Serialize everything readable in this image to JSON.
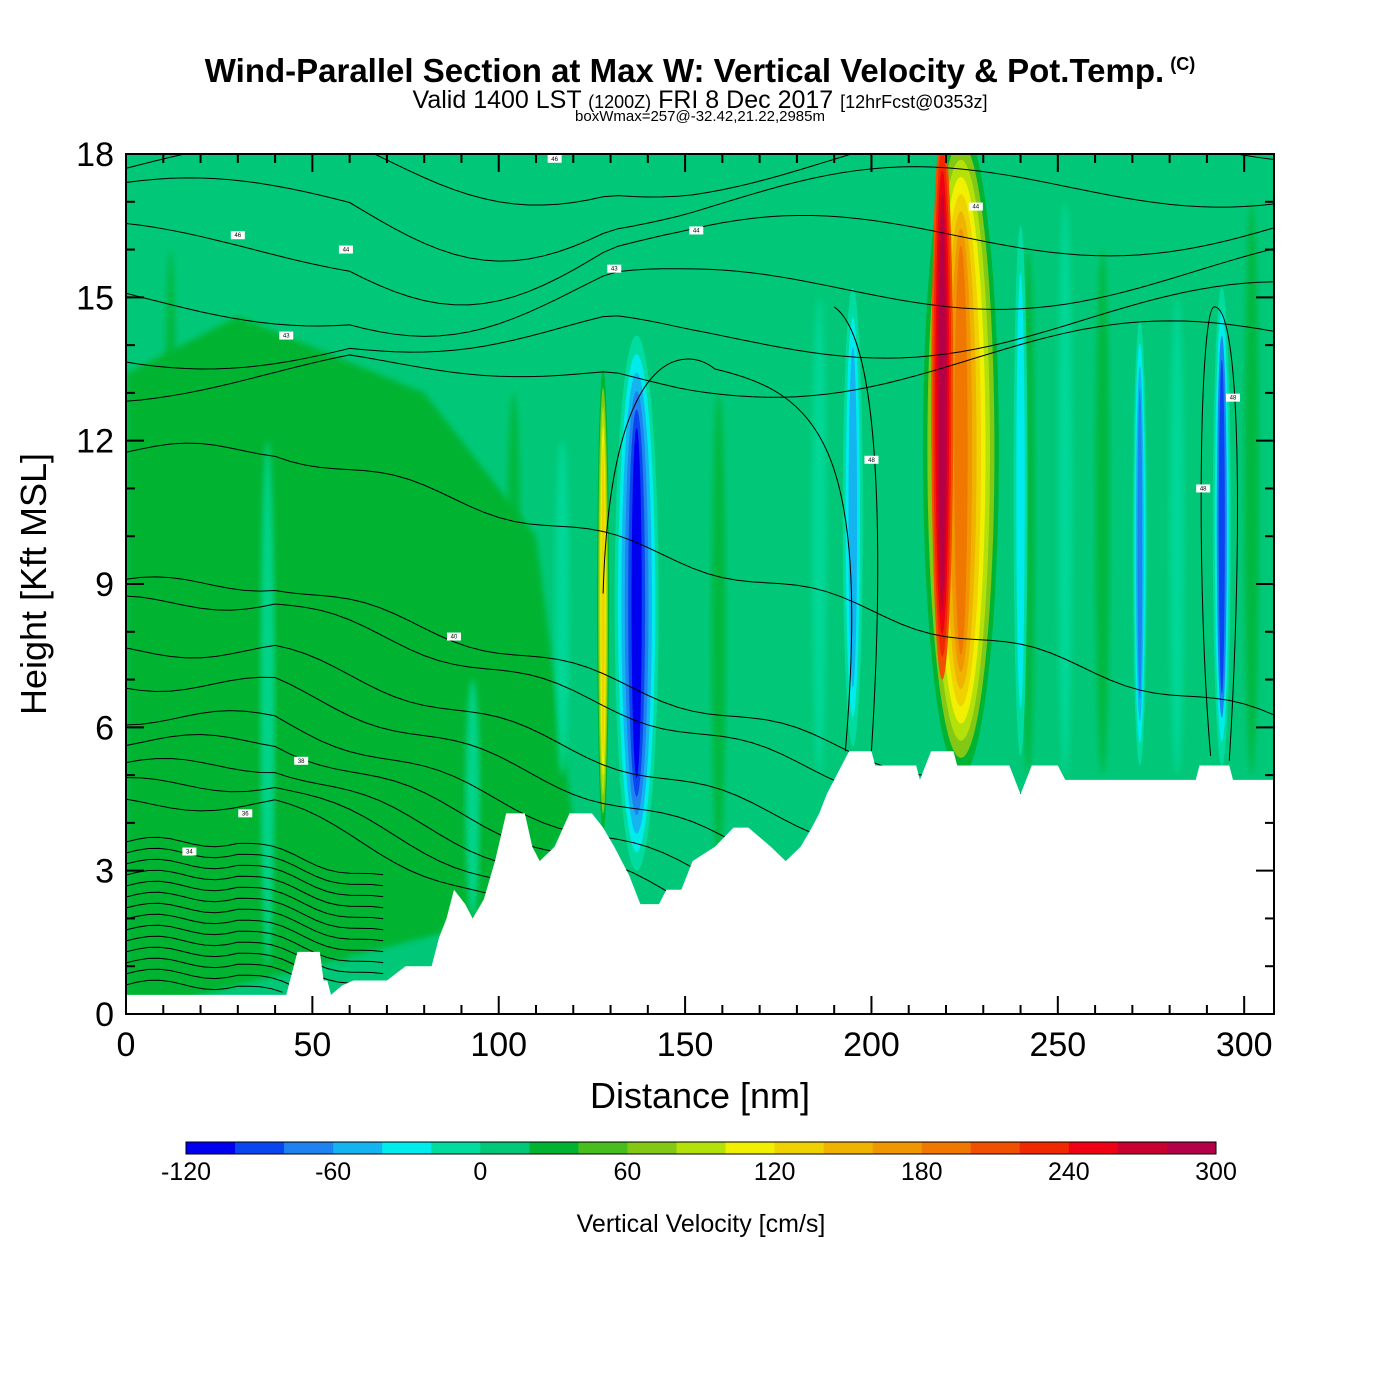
{
  "header": {
    "title_main": "Wind-Parallel Section at Max W: Vertical Velocity & Pot.Temp.",
    "copyright": "(C)",
    "valid_a": "Valid 1400 LST",
    "valid_z": "(1200Z)",
    "valid_b": "FRI 8 Dec 2017",
    "fcst": "[12hrFcst@0353z]",
    "boxw": "boxWmax=257@-32.42,21.22,2985m"
  },
  "chart_data": {
    "type": "heatmap",
    "xlabel": "Distance [nm]",
    "ylabel": "Height [Kft MSL]",
    "xlim": [
      0,
      308
    ],
    "ylim": [
      0,
      18
    ],
    "x_ticks": [
      0,
      50,
      100,
      150,
      200,
      250,
      300
    ],
    "y_ticks": [
      0,
      3,
      6,
      9,
      12,
      15,
      18
    ],
    "colorbar": {
      "title": "Vertical Velocity [cm/s]",
      "levels": [
        -120,
        -100,
        -80,
        -60,
        -40,
        -20,
        0,
        20,
        40,
        60,
        80,
        100,
        120,
        140,
        160,
        180,
        200,
        220,
        240,
        260,
        280,
        300
      ],
      "tick_labels": [
        "-120",
        "-60",
        "0",
        "60",
        "120",
        "180",
        "240",
        "300"
      ],
      "colors": [
        "#0000f0",
        "#0a46f0",
        "#1e82f0",
        "#14b4f0",
        "#00ebeb",
        "#00dca0",
        "#00c878",
        "#00b432",
        "#46be1e",
        "#82c814",
        "#b4e10a",
        "#f0f000",
        "#f0d200",
        "#f0b400",
        "#f09600",
        "#f07800",
        "#f05000",
        "#f02800",
        "#f00014",
        "#c80032",
        "#b40046"
      ]
    },
    "terrain": [
      [
        0,
        0.4
      ],
      [
        10,
        0.4
      ],
      [
        20,
        0.4
      ],
      [
        30,
        0.4
      ],
      [
        43,
        0.4
      ],
      [
        44,
        0.7
      ],
      [
        46,
        1.3
      ],
      [
        52,
        1.3
      ],
      [
        53,
        0.7
      ],
      [
        54,
        0.7
      ],
      [
        55,
        0.4
      ],
      [
        58,
        0.6
      ],
      [
        61,
        0.7
      ],
      [
        70,
        0.7
      ],
      [
        75,
        1.0
      ],
      [
        82,
        1.0
      ],
      [
        84,
        1.6
      ],
      [
        86,
        2.0
      ],
      [
        88,
        2.6
      ],
      [
        91,
        2.3
      ],
      [
        93,
        2.0
      ],
      [
        96,
        2.4
      ],
      [
        99,
        3.2
      ],
      [
        102,
        4.2
      ],
      [
        107,
        4.2
      ],
      [
        109,
        3.5
      ],
      [
        111,
        3.2
      ],
      [
        115,
        3.5
      ],
      [
        119,
        4.2
      ],
      [
        125,
        4.2
      ],
      [
        128,
        3.9
      ],
      [
        131,
        3.5
      ],
      [
        133,
        3.2
      ],
      [
        135,
        2.9
      ],
      [
        138,
        2.3
      ],
      [
        143,
        2.3
      ],
      [
        145,
        2.6
      ],
      [
        149,
        2.6
      ],
      [
        152,
        3.2
      ],
      [
        158,
        3.5
      ],
      [
        163,
        3.9
      ],
      [
        167,
        3.9
      ],
      [
        173,
        3.5
      ],
      [
        177,
        3.2
      ],
      [
        181,
        3.5
      ],
      [
        184,
        3.9
      ],
      [
        186,
        4.2
      ],
      [
        188,
        4.6
      ],
      [
        190,
        4.9
      ],
      [
        192,
        5.2
      ],
      [
        194,
        5.5
      ],
      [
        200,
        5.5
      ],
      [
        201,
        5.2
      ],
      [
        212,
        5.2
      ],
      [
        213,
        4.9
      ],
      [
        216,
        5.5
      ],
      [
        222,
        5.5
      ],
      [
        223,
        5.2
      ],
      [
        237,
        5.2
      ],
      [
        240,
        4.6
      ],
      [
        243,
        5.2
      ],
      [
        250,
        5.2
      ],
      [
        252,
        4.9
      ],
      [
        287,
        4.9
      ],
      [
        288,
        5.2
      ],
      [
        296,
        5.2
      ],
      [
        297,
        4.9
      ],
      [
        308,
        4.9
      ]
    ],
    "theta_contour_labels": [
      "46",
      "44",
      "44",
      "43",
      "43",
      "46",
      "44",
      "40",
      "38",
      "36",
      "34",
      "48",
      "48",
      "48"
    ],
    "w_features": [
      {
        "x": 137,
        "y": 8.5,
        "w": -120
      },
      {
        "x": 133,
        "y": 10.5,
        "w": -60
      },
      {
        "x": 128,
        "y": 8,
        "w": 120
      },
      {
        "x": 219,
        "y": 12,
        "w": 300
      },
      {
        "x": 226,
        "y": 10,
        "w": 180
      },
      {
        "x": 218,
        "y": 6,
        "w": 60
      },
      {
        "x": 195,
        "y": 11,
        "w": -60
      },
      {
        "x": 272,
        "y": 8,
        "w": -80
      },
      {
        "x": 294,
        "y": 9,
        "w": -80
      }
    ]
  }
}
